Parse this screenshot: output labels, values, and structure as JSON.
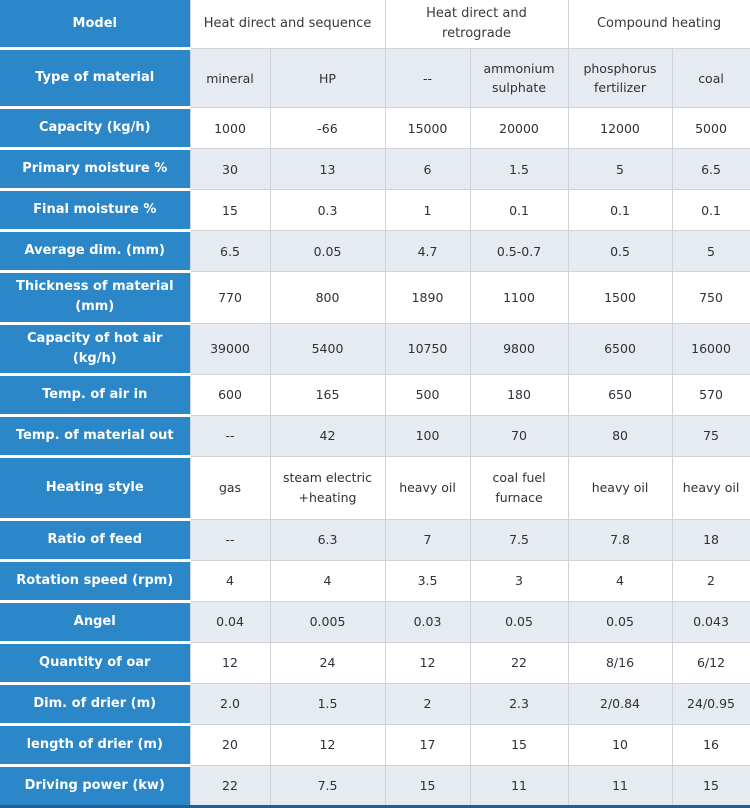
{
  "colors": {
    "header_blue": "#2b87c8",
    "row_shade": "#e6ebf1",
    "row_white": "#ffffff",
    "grid_border": "#d0d4d9",
    "bottom_bar": "#1e6097",
    "header_text": "#ffffff",
    "cell_text": "#30303a",
    "group_text": "#3a3a3a"
  },
  "table": {
    "corner_label": "Model",
    "column_groups": [
      {
        "label": "Heat direct and sequence",
        "span": 2
      },
      {
        "label": "Heat direct and retrograde",
        "span": 2
      },
      {
        "label": "Compound heating",
        "span": 2
      }
    ],
    "rows": [
      {
        "label": "Type of material",
        "cells": [
          "mineral",
          "HP",
          "--",
          "ammonium sulphate",
          "phosphorus fertilizer",
          "coal"
        ]
      },
      {
        "label": "Capacity (kg/h)",
        "cells": [
          "1000",
          "-66",
          "15000",
          "20000",
          "12000",
          "5000"
        ]
      },
      {
        "label": "Primary moisture %",
        "cells": [
          "30",
          "13",
          "6",
          "1.5",
          "5",
          "6.5"
        ]
      },
      {
        "label": "Final moisture %",
        "cells": [
          "15",
          "0.3",
          "1",
          "0.1",
          "0.1",
          "0.1"
        ]
      },
      {
        "label": "Average dim. (mm)",
        "cells": [
          "6.5",
          "0.05",
          "4.7",
          "0.5-0.7",
          "0.5",
          "5"
        ]
      },
      {
        "label": "Thickness of material (mm)",
        "cells": [
          "770",
          "800",
          "1890",
          "1100",
          "1500",
          "750"
        ]
      },
      {
        "label": "Capacity of hot air (kg/h)",
        "cells": [
          "39000",
          "5400",
          "10750",
          "9800",
          "6500",
          "16000"
        ]
      },
      {
        "label": "Temp. of air in",
        "cells": [
          "600",
          "165",
          "500",
          "180",
          "650",
          "570"
        ]
      },
      {
        "label": "Temp. of material out",
        "cells": [
          "--",
          "42",
          "100",
          "70",
          "80",
          "75"
        ]
      },
      {
        "label": "Heating style",
        "cells": [
          "gas",
          "steam electric +heating",
          "heavy oil",
          "coal fuel furnace",
          "heavy oil",
          "heavy oil"
        ]
      },
      {
        "label": "Ratio of feed",
        "cells": [
          "--",
          "6.3",
          "7",
          "7.5",
          "7.8",
          "18"
        ]
      },
      {
        "label": "Rotation speed (rpm)",
        "cells": [
          "4",
          "4",
          "3.5",
          "3",
          "4",
          "2"
        ]
      },
      {
        "label": "Angel",
        "cells": [
          "0.04",
          "0.005",
          "0.03",
          "0.05",
          "0.05",
          "0.043"
        ]
      },
      {
        "label": "Quantity of oar",
        "cells": [
          "12",
          "24",
          "12",
          "22",
          "8/16",
          "6/12"
        ]
      },
      {
        "label": "Dim. of drier (m)",
        "cells": [
          "2.0",
          "1.5",
          "2",
          "2.3",
          "2/0.84",
          "24/0.95"
        ]
      },
      {
        "label": "length of drier (m)",
        "cells": [
          "20",
          "12",
          "17",
          "15",
          "10",
          "16"
        ]
      },
      {
        "label": "Driving power (kw)",
        "cells": [
          "22",
          "7.5",
          "15",
          "11",
          "11",
          "15"
        ]
      }
    ]
  }
}
